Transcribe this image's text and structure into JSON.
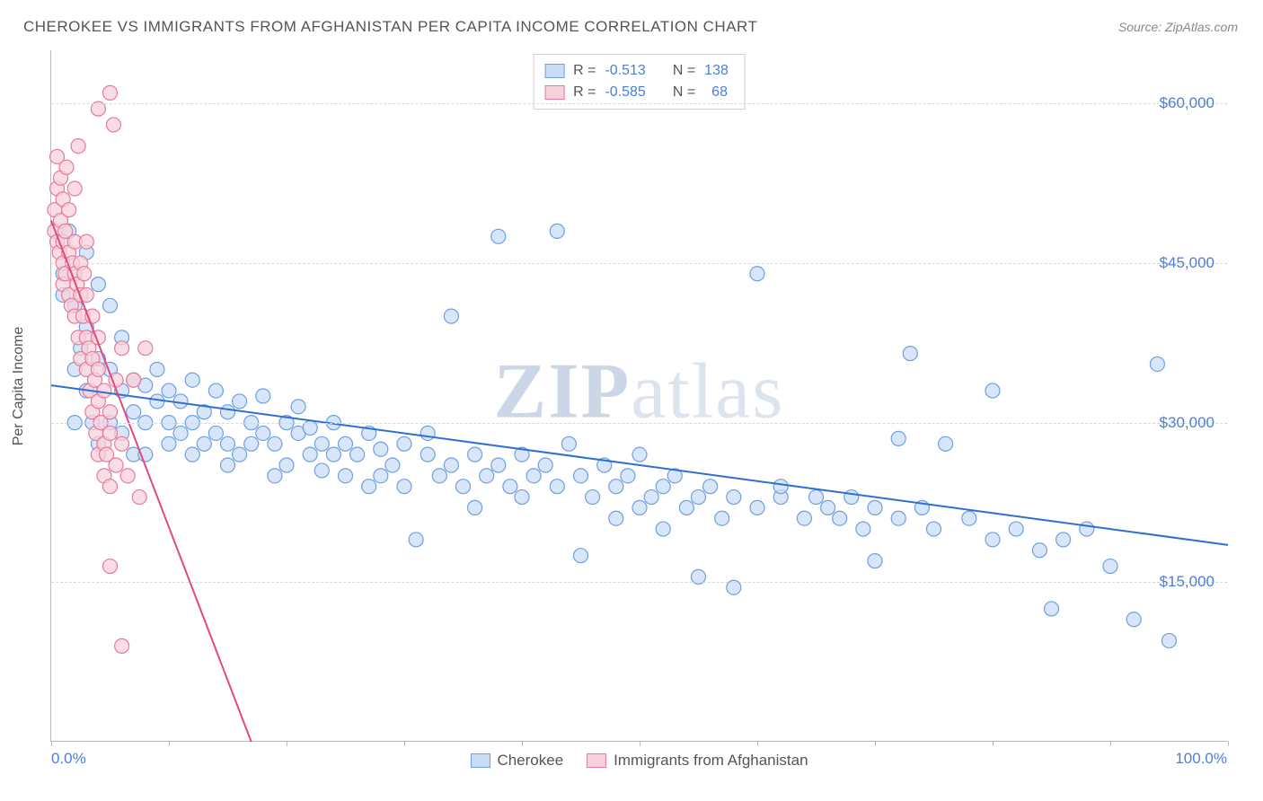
{
  "title": "CHEROKEE VS IMMIGRANTS FROM AFGHANISTAN PER CAPITA INCOME CORRELATION CHART",
  "source_prefix": "Source: ",
  "source": "ZipAtlas.com",
  "watermark_a": "ZIP",
  "watermark_b": "atlas",
  "y_axis_label": "Per Capita Income",
  "chart": {
    "type": "scatter",
    "background_color": "#ffffff",
    "grid_color": "#d8d8d8",
    "axis_color": "#bbbbbb",
    "label_color": "#4a7fd8",
    "title_color": "#555555",
    "marker_radius": 8,
    "marker_stroke_width": 1.2,
    "trend_line_width": 2,
    "xlim": [
      0,
      100
    ],
    "ylim": [
      0,
      65000
    ],
    "y_ticks": [
      15000,
      30000,
      45000,
      60000
    ],
    "y_tick_labels": [
      "$15,000",
      "$30,000",
      "$45,000",
      "$60,000"
    ],
    "x_tick_positions": [
      0,
      10,
      20,
      30,
      40,
      50,
      60,
      70,
      80,
      90,
      100
    ],
    "x_min_label": "0.0%",
    "x_max_label": "100.0%",
    "series": [
      {
        "name": "Cherokee",
        "fill": "#c9ddf6",
        "stroke": "#6f9fe0",
        "trend_color": "#2f6fd0",
        "R": "-0.513",
        "N": "138",
        "trend": {
          "x1": 0,
          "y1": 33500,
          "x2": 100,
          "y2": 18500
        },
        "points": [
          [
            1,
            44000
          ],
          [
            1,
            42000
          ],
          [
            1.5,
            48000
          ],
          [
            2,
            41000
          ],
          [
            2,
            35000
          ],
          [
            2,
            30000
          ],
          [
            2.5,
            37000
          ],
          [
            3,
            39000
          ],
          [
            3,
            33000
          ],
          [
            3,
            46000
          ],
          [
            3.5,
            30000
          ],
          [
            4,
            36000
          ],
          [
            4,
            28000
          ],
          [
            4,
            43000
          ],
          [
            5,
            35000
          ],
          [
            5,
            30000
          ],
          [
            5,
            41000
          ],
          [
            6,
            33000
          ],
          [
            6,
            29000
          ],
          [
            6,
            38000
          ],
          [
            7,
            34000
          ],
          [
            7,
            27000
          ],
          [
            7,
            31000
          ],
          [
            8,
            30000
          ],
          [
            8,
            33500
          ],
          [
            8,
            27000
          ],
          [
            9,
            32000
          ],
          [
            9,
            35000
          ],
          [
            10,
            28000
          ],
          [
            10,
            30000
          ],
          [
            10,
            33000
          ],
          [
            11,
            29000
          ],
          [
            11,
            32000
          ],
          [
            12,
            30000
          ],
          [
            12,
            27000
          ],
          [
            12,
            34000
          ],
          [
            13,
            28000
          ],
          [
            13,
            31000
          ],
          [
            14,
            29000
          ],
          [
            14,
            33000
          ],
          [
            15,
            28000
          ],
          [
            15,
            26000
          ],
          [
            15,
            31000
          ],
          [
            16,
            32000
          ],
          [
            16,
            27000
          ],
          [
            17,
            30000
          ],
          [
            17,
            28000
          ],
          [
            18,
            29000
          ],
          [
            18,
            32500
          ],
          [
            19,
            28000
          ],
          [
            19,
            25000
          ],
          [
            20,
            30000
          ],
          [
            20,
            26000
          ],
          [
            21,
            29000
          ],
          [
            21,
            31500
          ],
          [
            22,
            27000
          ],
          [
            22,
            29500
          ],
          [
            23,
            28000
          ],
          [
            23,
            25500
          ],
          [
            24,
            27000
          ],
          [
            24,
            30000
          ],
          [
            25,
            28000
          ],
          [
            25,
            25000
          ],
          [
            26,
            27000
          ],
          [
            27,
            29000
          ],
          [
            27,
            24000
          ],
          [
            28,
            27500
          ],
          [
            28,
            25000
          ],
          [
            29,
            26000
          ],
          [
            30,
            28000
          ],
          [
            30,
            24000
          ],
          [
            31,
            19000
          ],
          [
            32,
            27000
          ],
          [
            32,
            29000
          ],
          [
            33,
            25000
          ],
          [
            34,
            40000
          ],
          [
            34,
            26000
          ],
          [
            35,
            24000
          ],
          [
            36,
            27000
          ],
          [
            36,
            22000
          ],
          [
            37,
            25000
          ],
          [
            38,
            26000
          ],
          [
            38,
            47500
          ],
          [
            39,
            24000
          ],
          [
            40,
            27000
          ],
          [
            40,
            23000
          ],
          [
            41,
            25000
          ],
          [
            42,
            26000
          ],
          [
            43,
            24000
          ],
          [
            43,
            48000
          ],
          [
            44,
            28000
          ],
          [
            45,
            17500
          ],
          [
            45,
            25000
          ],
          [
            46,
            23000
          ],
          [
            47,
            26000
          ],
          [
            48,
            24000
          ],
          [
            48,
            21000
          ],
          [
            49,
            25000
          ],
          [
            50,
            27000
          ],
          [
            50,
            22000
          ],
          [
            51,
            23000
          ],
          [
            52,
            24000
          ],
          [
            52,
            20000
          ],
          [
            53,
            25000
          ],
          [
            54,
            22000
          ],
          [
            55,
            23000
          ],
          [
            55,
            15500
          ],
          [
            56,
            24000
          ],
          [
            57,
            21000
          ],
          [
            58,
            23000
          ],
          [
            58,
            14500
          ],
          [
            60,
            22000
          ],
          [
            60,
            44000
          ],
          [
            62,
            23000
          ],
          [
            62,
            24000
          ],
          [
            64,
            21000
          ],
          [
            65,
            23000
          ],
          [
            66,
            22000
          ],
          [
            67,
            21000
          ],
          [
            68,
            23000
          ],
          [
            69,
            20000
          ],
          [
            70,
            22000
          ],
          [
            70,
            17000
          ],
          [
            72,
            21000
          ],
          [
            72,
            28500
          ],
          [
            73,
            36500
          ],
          [
            74,
            22000
          ],
          [
            75,
            20000
          ],
          [
            76,
            28000
          ],
          [
            78,
            21000
          ],
          [
            80,
            19000
          ],
          [
            80,
            33000
          ],
          [
            82,
            20000
          ],
          [
            84,
            18000
          ],
          [
            85,
            12500
          ],
          [
            86,
            19000
          ],
          [
            88,
            20000
          ],
          [
            90,
            16500
          ],
          [
            92,
            11500
          ],
          [
            94,
            35500
          ],
          [
            95,
            9500
          ]
        ]
      },
      {
        "name": "Immigrants from Afghanistan",
        "fill": "#f7d1db",
        "stroke": "#e77a9a",
        "trend_color": "#e04a7a",
        "R": "-0.585",
        "N": "68",
        "trend": {
          "x1": 0,
          "y1": 49000,
          "x2": 17,
          "y2": 0
        },
        "points": [
          [
            0.3,
            50000
          ],
          [
            0.3,
            48000
          ],
          [
            0.5,
            52000
          ],
          [
            0.5,
            47000
          ],
          [
            0.5,
            55000
          ],
          [
            0.7,
            46000
          ],
          [
            0.8,
            49000
          ],
          [
            0.8,
            53000
          ],
          [
            1,
            45000
          ],
          [
            1,
            47000
          ],
          [
            1,
            51000
          ],
          [
            1,
            43000
          ],
          [
            1.2,
            48000
          ],
          [
            1.2,
            44000
          ],
          [
            1.3,
            54000
          ],
          [
            1.5,
            46000
          ],
          [
            1.5,
            42000
          ],
          [
            1.5,
            50000
          ],
          [
            1.7,
            41000
          ],
          [
            1.8,
            45000
          ],
          [
            2,
            44000
          ],
          [
            2,
            47000
          ],
          [
            2,
            40000
          ],
          [
            2,
            52000
          ],
          [
            2.2,
            43000
          ],
          [
            2.3,
            38000
          ],
          [
            2.3,
            56000
          ],
          [
            2.5,
            42000
          ],
          [
            2.5,
            45000
          ],
          [
            2.5,
            36000
          ],
          [
            2.7,
            40000
          ],
          [
            2.8,
            44000
          ],
          [
            3,
            38000
          ],
          [
            3,
            42000
          ],
          [
            3,
            35000
          ],
          [
            3,
            47000
          ],
          [
            3.2,
            37000
          ],
          [
            3.3,
            33000
          ],
          [
            3.5,
            40000
          ],
          [
            3.5,
            36000
          ],
          [
            3.5,
            31000
          ],
          [
            3.7,
            34000
          ],
          [
            3.8,
            29000
          ],
          [
            4,
            35000
          ],
          [
            4,
            32000
          ],
          [
            4,
            27000
          ],
          [
            4,
            38000
          ],
          [
            4.2,
            30000
          ],
          [
            4.5,
            33000
          ],
          [
            4.5,
            28000
          ],
          [
            4.5,
            25000
          ],
          [
            4.7,
            27000
          ],
          [
            5,
            31000
          ],
          [
            5,
            24000
          ],
          [
            5,
            29000
          ],
          [
            4,
            59500
          ],
          [
            5,
            61000
          ],
          [
            5.3,
            58000
          ],
          [
            5.5,
            26000
          ],
          [
            5.5,
            34000
          ],
          [
            6,
            28000
          ],
          [
            6,
            37000
          ],
          [
            6.5,
            25000
          ],
          [
            7,
            34000
          ],
          [
            7.5,
            23000
          ],
          [
            8,
            37000
          ],
          [
            5,
            16500
          ],
          [
            6,
            9000
          ]
        ]
      }
    ],
    "legend_top": {
      "r_label": "R =",
      "n_label": "N ="
    },
    "legend_bottom_labels": [
      "Cherokee",
      "Immigrants from Afghanistan"
    ]
  }
}
